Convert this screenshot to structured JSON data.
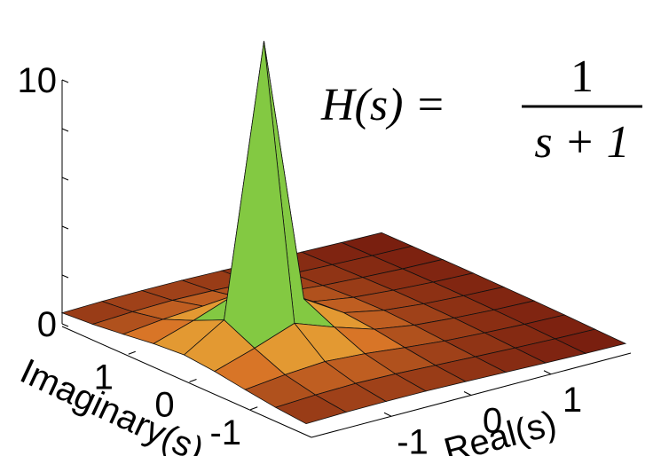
{
  "chart_data": {
    "type": "surface",
    "annotation": {
      "lhs": "H(s) =",
      "numerator": "1",
      "denominator": "s + 1"
    },
    "xlabel": "Real(s)",
    "ylabel": "Imaginary(s)",
    "x": [
      -2,
      -1.5,
      -1,
      -0.5,
      0,
      0.5,
      1,
      1.5,
      2
    ],
    "y": [
      -2,
      -1.5,
      -1,
      -0.5,
      0,
      0.5,
      1,
      1.5,
      2
    ],
    "z": [
      [
        0.45,
        0.49,
        0.5,
        0.49,
        0.45,
        0.4,
        0.35,
        0.31,
        0.28
      ],
      [
        0.55,
        0.63,
        0.67,
        0.63,
        0.55,
        0.47,
        0.4,
        0.34,
        0.3
      ],
      [
        0.71,
        0.89,
        1,
        0.89,
        0.71,
        0.55,
        0.45,
        0.37,
        0.32
      ],
      [
        0.89,
        1.41,
        2,
        1.41,
        0.89,
        0.63,
        0.49,
        0.39,
        0.33
      ],
      [
        1,
        2,
        13,
        2,
        1,
        0.67,
        0.5,
        0.4,
        0.33
      ],
      [
        0.89,
        1.41,
        2,
        1.41,
        0.89,
        0.63,
        0.49,
        0.39,
        0.33
      ],
      [
        0.71,
        0.89,
        1,
        0.89,
        0.71,
        0.55,
        0.45,
        0.37,
        0.32
      ],
      [
        0.55,
        0.63,
        0.67,
        0.63,
        0.55,
        0.47,
        0.4,
        0.34,
        0.3
      ],
      [
        0.45,
        0.49,
        0.5,
        0.49,
        0.45,
        0.4,
        0.35,
        0.31,
        0.28
      ]
    ],
    "xlim": [
      -2,
      2
    ],
    "ylim": [
      -2,
      2
    ],
    "zlim": [
      0,
      10
    ],
    "xticks": [
      -1,
      0,
      1
    ],
    "yticks": [
      -1,
      0,
      1
    ],
    "zticks": [
      0,
      {
        "value": 2,
        "label": null
      },
      {
        "value": 4,
        "label": null
      },
      {
        "value": 6,
        "label": null
      },
      {
        "value": 8,
        "label": null
      },
      10
    ]
  }
}
